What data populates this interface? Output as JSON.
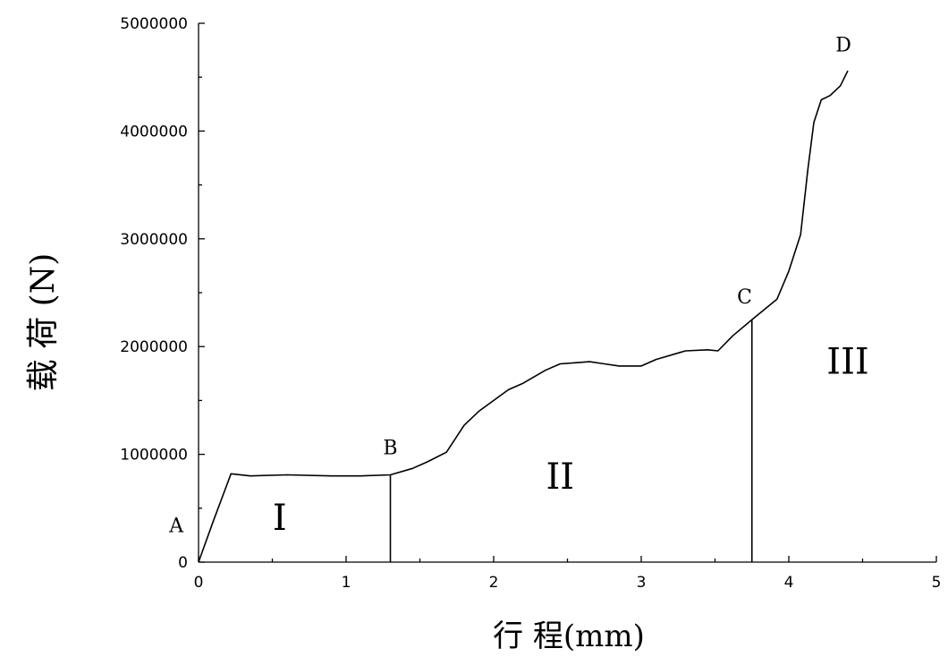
{
  "chart_data": {
    "type": "line",
    "xlabel": "行 程(mm)",
    "ylabel": "载 荷 (N)",
    "xlim": [
      0,
      5
    ],
    "ylim": [
      0,
      5000000
    ],
    "grid": false,
    "x_ticks": [
      0,
      1,
      2,
      3,
      4,
      5
    ],
    "x_tick_labels": [
      "0",
      "1",
      "2",
      "3",
      "4",
      "5"
    ],
    "y_ticks": [
      0,
      1000000,
      2000000,
      3000000,
      4000000,
      5000000
    ],
    "y_tick_labels": [
      "0",
      "1000000",
      "2000000",
      "3000000",
      "4000000",
      "5000000"
    ],
    "series": [
      {
        "x": [
          0,
          0.1,
          0.22,
          0.35,
          0.6,
          0.9,
          1.1,
          1.3,
          1.45,
          1.55,
          1.68,
          1.8,
          1.9,
          2.0,
          2.1,
          2.2,
          2.35,
          2.45,
          2.55,
          2.65,
          2.75,
          2.85,
          3.0,
          3.1,
          3.3,
          3.45,
          3.52,
          3.62,
          3.75,
          3.92,
          4.0,
          4.08,
          4.13,
          4.17,
          4.22,
          4.28,
          4.35,
          4.4
        ],
        "y": [
          0,
          380000,
          820000,
          800000,
          810000,
          800000,
          800000,
          810000,
          870000,
          930000,
          1020000,
          1270000,
          1400000,
          1500000,
          1600000,
          1660000,
          1780000,
          1840000,
          1850000,
          1860000,
          1840000,
          1820000,
          1820000,
          1880000,
          1960000,
          1970000,
          1960000,
          2100000,
          2250000,
          2440000,
          2700000,
          3040000,
          3650000,
          4080000,
          4290000,
          4330000,
          4420000,
          4560000
        ]
      }
    ],
    "dividers": [
      {
        "x": 1.3,
        "y_top": 810000
      },
      {
        "x": 3.75,
        "y_top": 2250000
      }
    ],
    "point_labels": [
      {
        "text": "A",
        "x": -0.15,
        "y": 280000
      },
      {
        "text": "B",
        "x": 1.3,
        "y": 1000000
      },
      {
        "text": "C",
        "x": 3.7,
        "y": 2400000
      },
      {
        "text": "D",
        "x": 4.37,
        "y": 4740000
      }
    ],
    "region_labels": [
      {
        "text": "I",
        "x": 0.55,
        "y": 300000
      },
      {
        "text": "II",
        "x": 2.45,
        "y": 680000
      },
      {
        "text": "III",
        "x": 4.4,
        "y": 1750000
      }
    ]
  }
}
